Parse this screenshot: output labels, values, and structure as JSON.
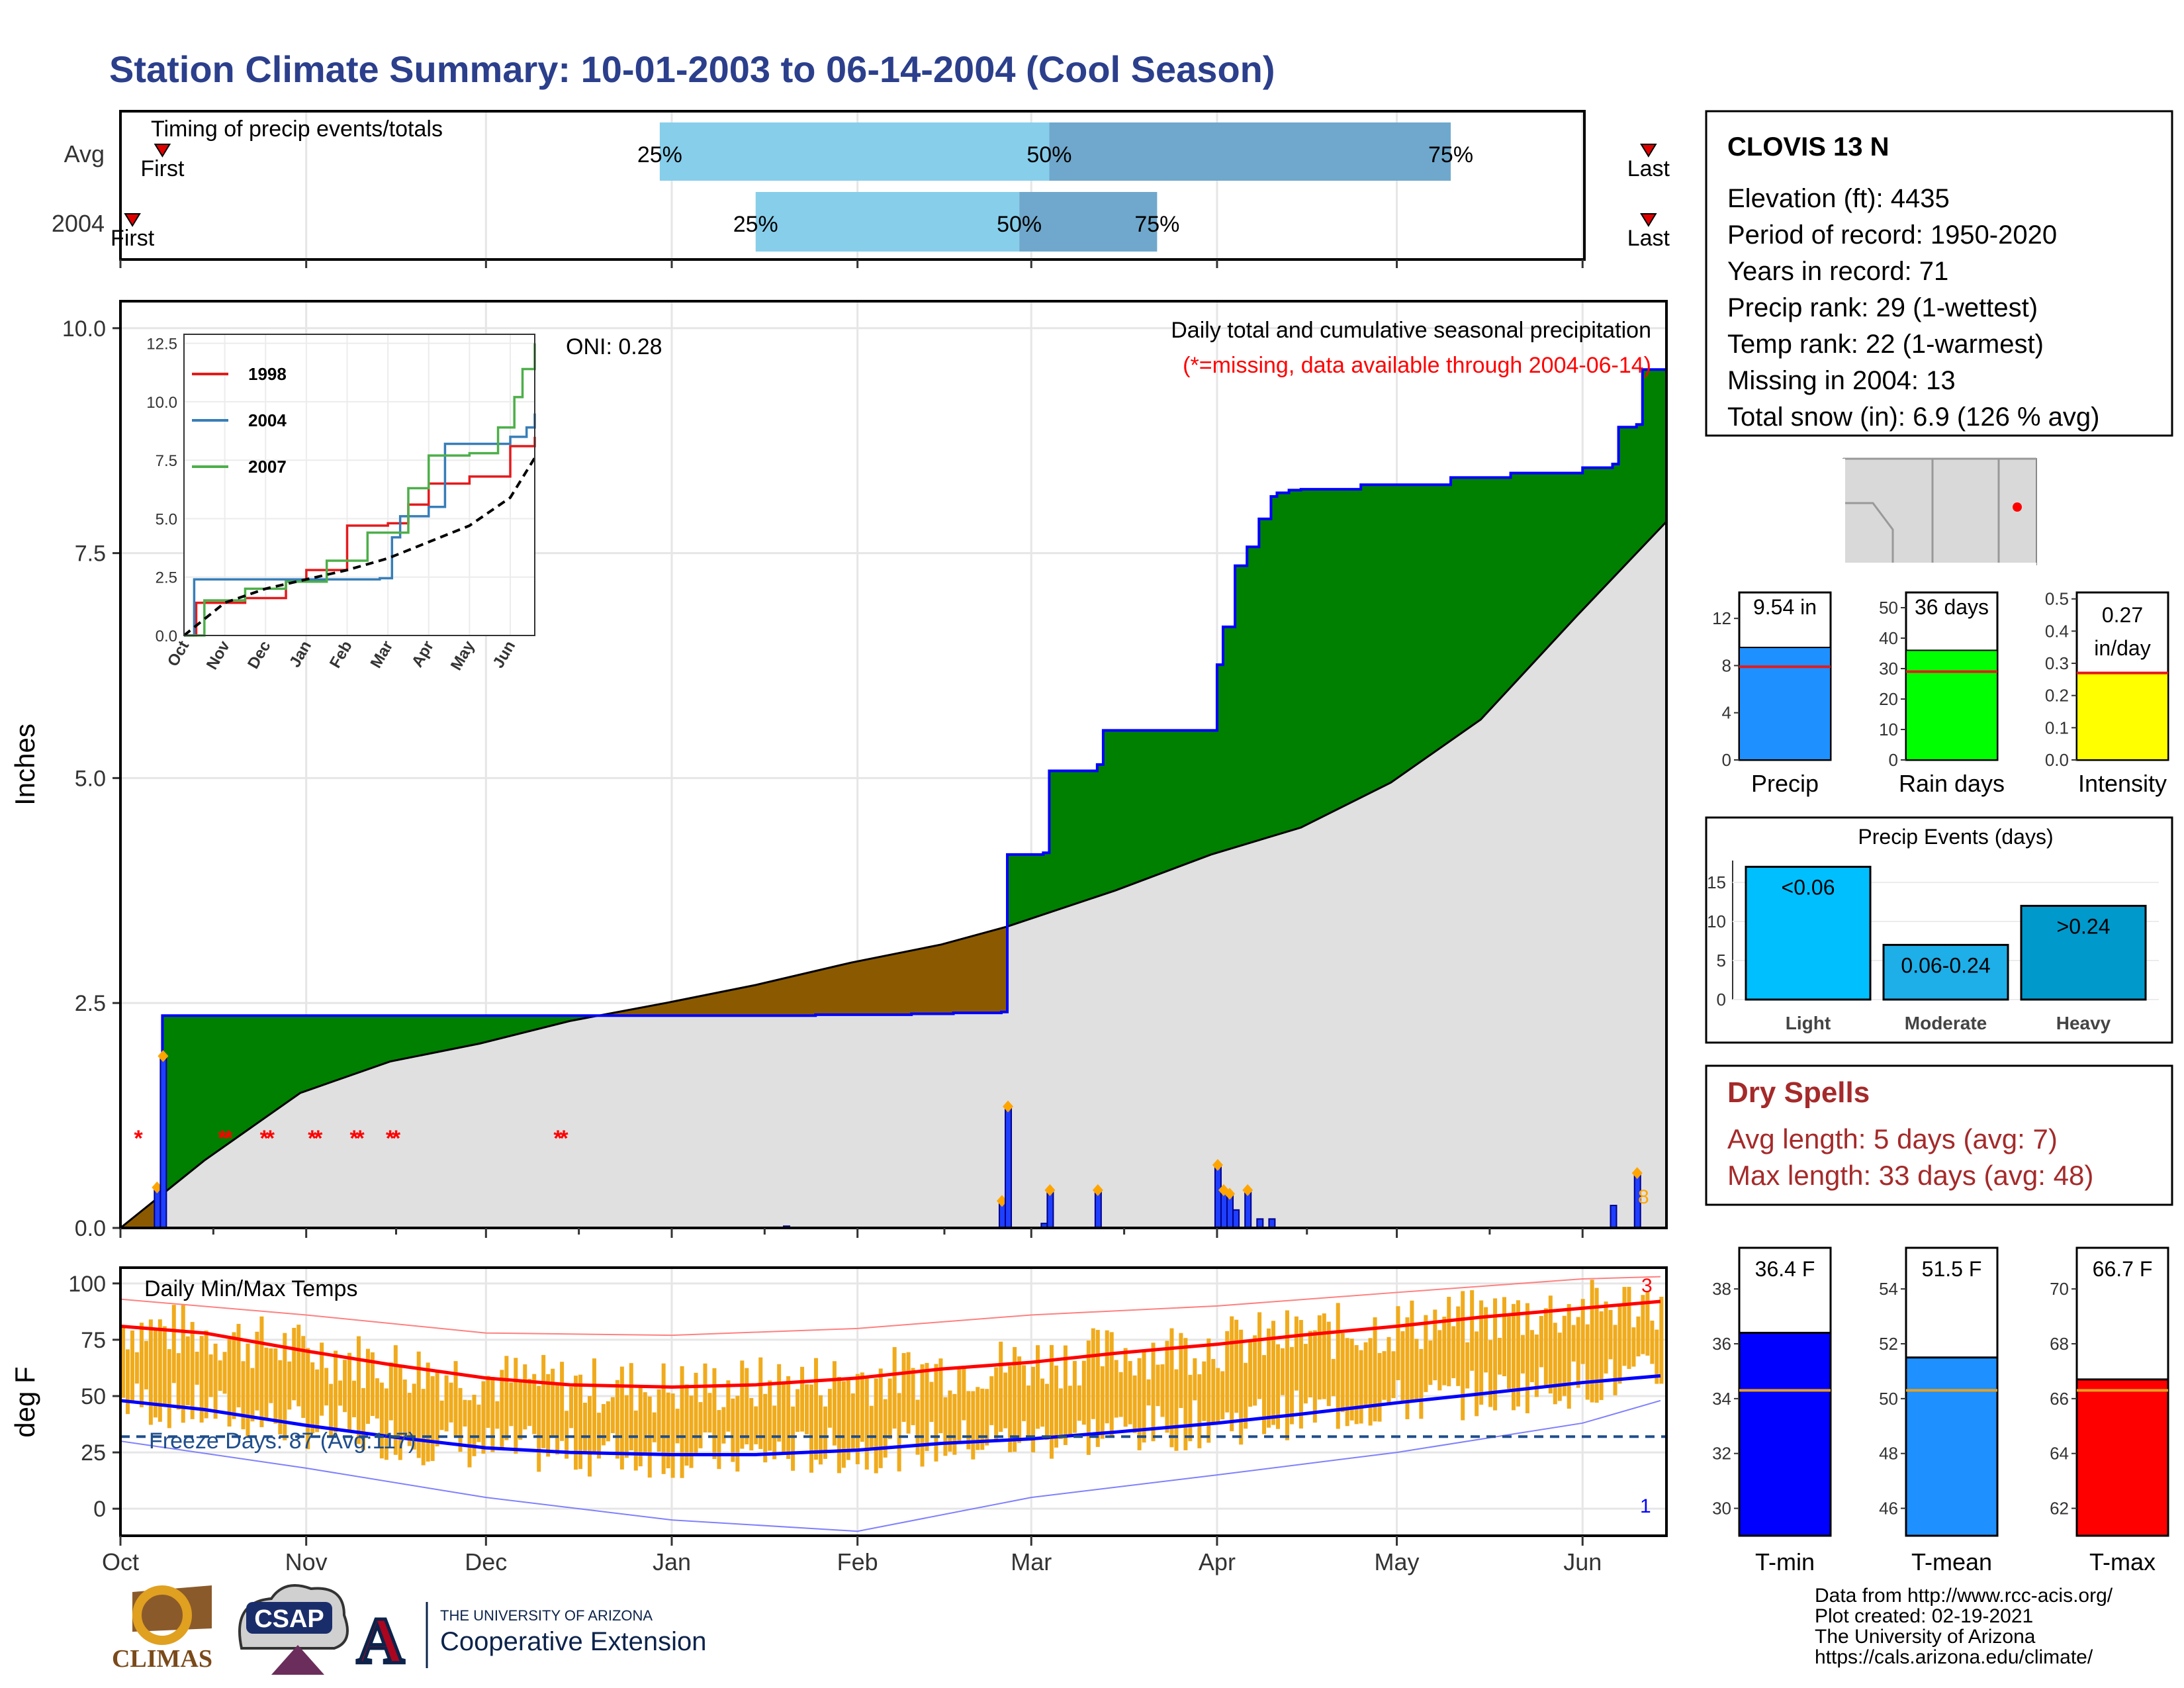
{
  "header": {
    "title": "Station Climate Summary: 10-01-2003 to 06-14-2004 (Cool Season)",
    "title_color": "#2b3f8c"
  },
  "timing_panel": {
    "label": "Timing of precip events/totals",
    "rows": [
      {
        "name": "Avg",
        "first_label": "First",
        "last_label": "Last",
        "first_date": "2003-10-08",
        "last_date": "2004-06-12",
        "p25_date": "2003-12-30",
        "p50_date": "2004-03-04",
        "p75_date": "2004-05-10",
        "p25_label": "25%",
        "p50_label": "50%",
        "p75_label": "75%"
      },
      {
        "name": "2004",
        "first_label": "First",
        "last_label": "Last",
        "first_date": "2003-10-03",
        "last_date": "2004-06-12",
        "p25_date": "2004-01-15",
        "p50_date": "2004-02-28",
        "p75_date": "2004-03-22",
        "p25_label": "25%",
        "p50_label": "50%",
        "p75_label": "75%"
      }
    ],
    "colors": {
      "q1": "#87ceeb",
      "q2": "#6fa8cc",
      "marker": "#e00000"
    }
  },
  "precip_panel": {
    "ylabel": "Inches",
    "title_line1": "Daily total and cumulative seasonal precipitation",
    "title_line2": "(*=missing, data available through 2004-06-14)",
    "oni_label": "ONI: 0.28",
    "end_count_label": "8",
    "colors": {
      "above": "#008000",
      "below": "#8b5a00",
      "avg_fill": "#e0e0e0",
      "obs_line": "#0000ff",
      "missing": "#ff0000",
      "heavy_marker": "#ffa500"
    }
  },
  "temp_panel": {
    "ylabel": "deg F",
    "label": "Daily Min/Max Temps",
    "freeze_label": "Freeze Days: 87 (Avg:117)",
    "top_count_label": "3",
    "bottom_count_label": "1"
  },
  "station_box": {
    "name": "CLOVIS 13 N",
    "lines": [
      "Elevation (ft): 4435",
      "Period of record: 1950-2020",
      "Years in record: 71",
      "Precip rank: 29 (1-wettest)",
      "Temp rank: 22 (1-warmest)",
      "Missing in 2004: 13",
      "Total snow (in): 6.9 (126 % avg)"
    ]
  },
  "summary_bars": [
    {
      "name": "Precip",
      "value": 9.54,
      "avg": 7.9,
      "label": "9.54 in",
      "ymax": 14.2,
      "ticks": [
        "0",
        "4",
        "8",
        "12"
      ],
      "tick_values": [
        0,
        4,
        8,
        12
      ],
      "color": "#1e90ff"
    },
    {
      "name": "Rain days",
      "value": 36,
      "avg": 29,
      "label": "36 days",
      "ymax": 55,
      "ticks": [
        "0",
        "10",
        "20",
        "30",
        "40",
        "50"
      ],
      "tick_values": [
        0,
        10,
        20,
        30,
        40,
        50
      ],
      "color": "#00ff00"
    },
    {
      "name": "Intensity",
      "value": 0.27,
      "avg": 0.27,
      "label": "0.27\nin/day",
      "label_line1": "0.27",
      "label_line2": "in/day",
      "ymax": 0.52,
      "ticks": [
        "0.0",
        "0.1",
        "0.2",
        "0.3",
        "0.4",
        "0.5"
      ],
      "tick_values": [
        0,
        0.1,
        0.2,
        0.3,
        0.4,
        0.5
      ],
      "color": "#ffff00"
    }
  ],
  "events_chart": {
    "title": "Precip Events (days)",
    "categories": [
      "Light",
      "Moderate",
      "Heavy"
    ],
    "values": [
      17,
      7,
      12
    ],
    "labels": [
      "<0.06",
      "0.06-0.24",
      ">0.24"
    ],
    "colors": [
      "#00bfff",
      "#1eaee8",
      "#0099cc"
    ],
    "ticks": [
      "0",
      "5",
      "10",
      "15"
    ],
    "tick_values": [
      0,
      5,
      10,
      15
    ],
    "ymax": 17.8
  },
  "dry_spells": {
    "title": "Dry Spells",
    "line1": "Avg length: 5 days (avg: 7)",
    "line2": "Max length: 33 days (avg: 48)",
    "color": "#a52a2a"
  },
  "temp_bars": [
    {
      "name": "T-min",
      "value": 36.4,
      "avg": 34.3,
      "label": "36.4 F",
      "ymin": 29,
      "ymax": 39.5,
      "ticks": [
        "30",
        "32",
        "34",
        "36",
        "38"
      ],
      "tick_values": [
        30,
        32,
        34,
        36,
        38
      ],
      "color": "#0000ff"
    },
    {
      "name": "T-mean",
      "value": 51.5,
      "avg": 50.3,
      "label": "51.5 F",
      "ymin": 45,
      "ymax": 55.5,
      "ticks": [
        "46",
        "48",
        "50",
        "52",
        "54"
      ],
      "tick_values": [
        46,
        48,
        50,
        52,
        54
      ],
      "color": "#1e90ff"
    },
    {
      "name": "T-max",
      "value": 66.7,
      "avg": 66.3,
      "label": "66.7 F",
      "ymin": 61,
      "ymax": 71.5,
      "ticks": [
        "62",
        "64",
        "66",
        "68",
        "70"
      ],
      "tick_values": [
        62,
        64,
        66,
        68,
        70
      ],
      "color": "#ff0000"
    }
  ],
  "inset_chart": {
    "series": [
      {
        "name": "1998",
        "color": "#e41a1c"
      },
      {
        "name": "2004",
        "color": "#377eb8"
      },
      {
        "name": "2007",
        "color": "#4daf4a"
      }
    ],
    "x_ticks": [
      "Oct",
      "Nov",
      "Dec",
      "Jan",
      "Feb",
      "Mar",
      "Apr",
      "May",
      "Jun"
    ],
    "y_ticks": [
      "0.0",
      "2.5",
      "5.0",
      "7.5",
      "10.0",
      "12.5"
    ],
    "y_tick_values": [
      0,
      2.5,
      5,
      7.5,
      10,
      12.5
    ]
  },
  "map_inset": {
    "dot_color": "#ff0000"
  },
  "footer": {
    "climas_label": "CLIMAS",
    "csap_label": "CSAP",
    "ua_line1": "THE UNIVERSITY OF ARIZONA",
    "ua_line2": "Cooperative Extension",
    "credits": [
      "Data from http://www.rcc-acis.org/",
      "Plot created: 02-19-2021",
      "The University of Arizona",
      "https://cals.arizona.edu/climate/"
    ]
  },
  "chart_data": [
    {
      "type": "area",
      "title": "Daily total and cumulative seasonal precipitation",
      "xlabel": "",
      "ylabel": "Inches",
      "x_ticks": [
        "Oct",
        "Nov",
        "Dec",
        "Jan",
        "Feb",
        "Mar",
        "Apr",
        "May",
        "Jun"
      ],
      "x_tick_dates": [
        "2003-10-01",
        "2003-11-01",
        "2003-12-01",
        "2004-01-01",
        "2004-02-01",
        "2004-03-01",
        "2004-04-01",
        "2004-05-01",
        "2004-06-01"
      ],
      "xlim": [
        "2003-10-01",
        "2004-06-14"
      ],
      "y_ticks": [
        "0.0",
        "2.5",
        "5.0",
        "7.5",
        "10.0"
      ],
      "y_tick_values": [
        0,
        2.5,
        5.0,
        7.5,
        10.0
      ],
      "ylim": [
        0,
        10.3
      ],
      "grid": true,
      "series": [
        {
          "name": "cumulative (observed)",
          "x": [
            "2003-10-01",
            "2003-10-07",
            "2003-10-08",
            "2003-12-13",
            "2003-12-30",
            "2004-01-15",
            "2004-01-25",
            "2004-02-10",
            "2004-02-17",
            "2004-02-25",
            "2004-02-26",
            "2004-03-03",
            "2004-03-04",
            "2004-03-12",
            "2004-03-13",
            "2004-03-31",
            "2004-04-01",
            "2004-04-02",
            "2004-04-04",
            "2004-04-06",
            "2004-04-08",
            "2004-04-10",
            "2004-04-11",
            "2004-04-13",
            "2004-04-15",
            "2004-04-25",
            "2004-05-10",
            "2004-05-20",
            "2004-06-01",
            "2004-06-06",
            "2004-06-07",
            "2004-06-10",
            "2004-06-11",
            "2004-06-14"
          ],
          "y": [
            0.0,
            0.45,
            2.36,
            2.36,
            2.36,
            2.36,
            2.37,
            2.38,
            2.39,
            2.4,
            4.15,
            4.17,
            5.08,
            5.15,
            5.53,
            5.53,
            6.26,
            6.68,
            7.36,
            7.57,
            7.88,
            8.13,
            8.17,
            8.2,
            8.21,
            8.26,
            8.34,
            8.39,
            8.45,
            8.49,
            8.9,
            8.93,
            9.54,
            9.54
          ]
        },
        {
          "name": "cumulative (average)",
          "x": [
            "2003-10-01",
            "2003-10-15",
            "2003-10-31",
            "2003-11-15",
            "2003-11-30",
            "2003-12-15",
            "2003-12-31",
            "2004-01-15",
            "2004-01-31",
            "2004-02-15",
            "2004-02-26",
            "2004-03-15",
            "2004-03-31",
            "2004-04-15",
            "2004-04-30",
            "2004-05-15",
            "2004-05-31",
            "2004-06-14"
          ],
          "y": [
            0.0,
            0.75,
            1.5,
            1.85,
            2.05,
            2.3,
            2.5,
            2.7,
            2.95,
            3.15,
            3.35,
            3.75,
            4.15,
            4.45,
            4.95,
            5.65,
            6.8,
            7.85
          ]
        }
      ],
      "daily_precip": {
        "x": [
          "2003-10-07",
          "2003-10-08",
          "2004-01-20",
          "2004-02-25",
          "2004-02-26",
          "2004-03-03",
          "2004-03-04",
          "2004-03-12",
          "2004-04-01",
          "2004-04-02",
          "2004-04-03",
          "2004-04-04",
          "2004-04-06",
          "2004-04-08",
          "2004-04-10",
          "2004-06-06",
          "2004-06-10"
        ],
        "y": [
          0.45,
          1.91,
          0.02,
          0.3,
          1.35,
          0.05,
          0.42,
          0.42,
          0.7,
          0.42,
          0.38,
          0.2,
          0.42,
          0.1,
          0.1,
          0.25,
          0.61
        ]
      },
      "missing_dates": [
        "2003-10-04",
        "2003-10-18",
        "2003-10-19",
        "2003-10-25",
        "2003-10-26",
        "2003-11-02",
        "2003-11-03",
        "2003-11-09",
        "2003-11-10",
        "2003-11-15",
        "2003-11-16",
        "2003-12-13",
        "2003-12-14"
      ]
    },
    {
      "type": "bar",
      "title": "Daily Min/Max Temps",
      "xlabel": "",
      "ylabel": "deg F",
      "y_ticks": [
        "0",
        "25",
        "50",
        "75",
        "100"
      ],
      "y_tick_values": [
        0,
        25,
        50,
        75,
        100
      ],
      "ylim": [
        -12,
        107
      ],
      "freeze_line": 32,
      "series": [
        {
          "name": "avg max (smoothed)",
          "x": [
            "2003-10-01",
            "2003-10-15",
            "2003-11-01",
            "2003-11-15",
            "2003-12-01",
            "2003-12-15",
            "2004-01-01",
            "2004-01-15",
            "2004-02-01",
            "2004-02-15",
            "2004-03-01",
            "2004-03-15",
            "2004-04-01",
            "2004-04-15",
            "2004-05-01",
            "2004-05-15",
            "2004-06-01",
            "2004-06-14"
          ],
          "y": [
            81,
            78,
            70,
            64,
            58,
            55,
            54,
            55,
            58,
            62,
            65,
            69,
            73,
            77,
            81,
            85,
            89,
            92
          ]
        },
        {
          "name": "avg min (smoothed)",
          "x": [
            "2003-10-01",
            "2003-10-15",
            "2003-11-01",
            "2003-11-15",
            "2003-12-01",
            "2003-12-15",
            "2004-01-01",
            "2004-01-15",
            "2004-02-01",
            "2004-02-15",
            "2004-03-01",
            "2004-03-15",
            "2004-04-01",
            "2004-04-15",
            "2004-05-01",
            "2004-05-15",
            "2004-06-01",
            "2004-06-14"
          ],
          "y": [
            48,
            44,
            37,
            32,
            27,
            25,
            24,
            24,
            26,
            29,
            31,
            34,
            38,
            42,
            47,
            51,
            56,
            59
          ]
        },
        {
          "name": "record high",
          "x": [
            "2003-10-01",
            "2003-11-01",
            "2003-12-01",
            "2004-01-01",
            "2004-02-01",
            "2004-03-01",
            "2004-04-01",
            "2004-05-01",
            "2004-06-01",
            "2004-06-14"
          ],
          "y": [
            93,
            86,
            78,
            77,
            80,
            86,
            90,
            96,
            102,
            103
          ]
        },
        {
          "name": "record low",
          "x": [
            "2003-10-01",
            "2003-11-01",
            "2003-12-01",
            "2004-01-01",
            "2004-02-01",
            "2004-03-01",
            "2004-04-01",
            "2004-05-01",
            "2004-06-01",
            "2004-06-14"
          ],
          "y": [
            30,
            18,
            5,
            -5,
            -10,
            5,
            15,
            25,
            38,
            48
          ]
        }
      ]
    },
    {
      "type": "line",
      "title": "",
      "x_ticks": [
        "Oct",
        "Nov",
        "Dec",
        "Jan",
        "Feb",
        "Mar",
        "Apr",
        "May",
        "Jun"
      ],
      "ylim": [
        0,
        12.5
      ],
      "series": [
        {
          "name": "1998",
          "x": [
            0,
            0.3,
            1.5,
            2.5,
            3.0,
            4.0,
            5.0,
            5.5,
            6.0,
            7.0,
            8.0,
            8.6
          ],
          "y": [
            0,
            1.4,
            1.6,
            2.3,
            2.8,
            4.7,
            4.8,
            5.6,
            6.5,
            6.8,
            8.1,
            8.5
          ]
        },
        {
          "name": "2004",
          "x": [
            0,
            0.25,
            3.0,
            4.8,
            5.1,
            5.3,
            6.0,
            6.4,
            8.0,
            8.4,
            8.6
          ],
          "y": [
            0,
            2.4,
            2.4,
            2.45,
            4.2,
            5.1,
            5.5,
            8.2,
            8.5,
            8.9,
            9.5
          ]
        },
        {
          "name": "2007",
          "x": [
            0,
            0.5,
            1.5,
            2.5,
            3.5,
            4.5,
            5.5,
            6.0,
            7.0,
            7.7,
            8.1,
            8.3,
            8.6
          ],
          "y": [
            0,
            1.5,
            2.0,
            2.3,
            3.2,
            4.4,
            6.3,
            7.7,
            7.8,
            8.9,
            10.2,
            11.4,
            12.5
          ]
        },
        {
          "name": "average",
          "x": [
            0,
            1,
            2,
            3,
            4,
            5,
            6,
            7,
            8,
            8.6
          ],
          "y": [
            0,
            1.4,
            2.0,
            2.4,
            2.8,
            3.3,
            4.0,
            4.7,
            5.9,
            7.6
          ]
        }
      ]
    }
  ]
}
